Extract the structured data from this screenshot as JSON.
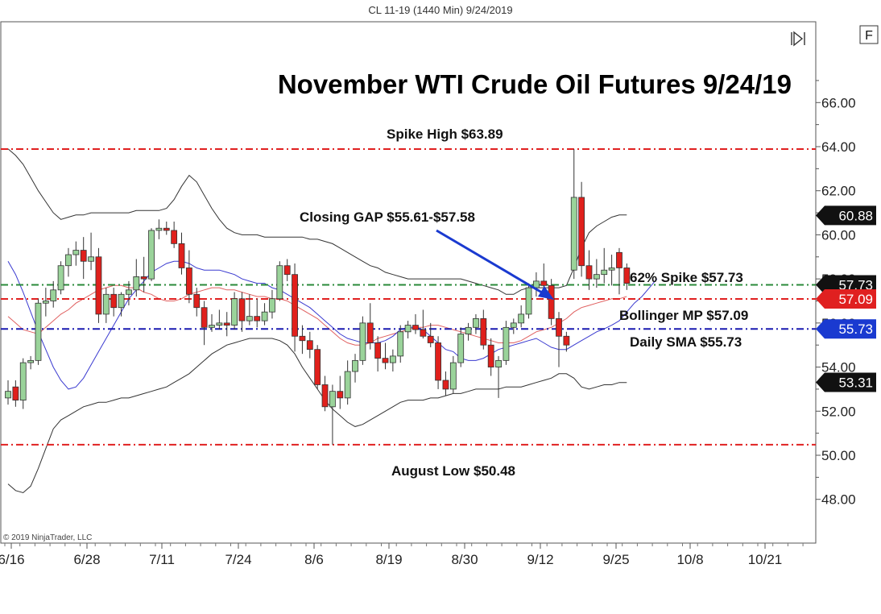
{
  "header": {
    "caption": "CL 11-19 (1440 Min)  9/24/2019"
  },
  "copyright": "© 2019 NinjaTrader, LLC",
  "controls": {
    "f_label": "F"
  },
  "chart_data": {
    "type": "candlestick",
    "title": "November WTI Crude Oil Futures 9/24/19",
    "ylim": [
      46.5,
      68.5
    ],
    "y_ticks": [
      "48.00",
      "50.00",
      "52.00",
      "54.00",
      "56.00",
      "58.00",
      "60.00",
      "62.00",
      "64.00",
      "66.00"
    ],
    "x_ticks": [
      "6/16",
      "6/28",
      "7/11",
      "7/24",
      "8/6",
      "8/19",
      "8/30",
      "9/12",
      "9/25",
      "10/8",
      "10/21"
    ],
    "colors": {
      "up": "#9ad39a",
      "down": "#e0201c",
      "band": "#333333",
      "sma_blue": "#3a3ad0",
      "mp_red": "#e06060"
    },
    "levels": [
      {
        "label": "Spike High $63.89",
        "value": 63.89,
        "color": "#e02020",
        "style": "dashdot"
      },
      {
        "label": "62% Spike $57.73",
        "value": 57.73,
        "color": "#2a8a3a",
        "style": "dashdot"
      },
      {
        "label": "Bollinger MP $57.09",
        "value": 57.09,
        "color": "#e02020",
        "style": "dashdot"
      },
      {
        "label": "Daily SMA $55.73",
        "value": 55.73,
        "color": "#1a1ab0",
        "style": "dashdot"
      },
      {
        "label": "August Low $50.48",
        "value": 50.48,
        "color": "#e02020",
        "style": "dashdot"
      }
    ],
    "gap_annotation": "Closing GAP $55.61-$57.58",
    "price_tags": [
      {
        "value": 60.88,
        "text": "60.88",
        "color": "#111111"
      },
      {
        "value": 57.73,
        "text": "57.73",
        "color": "#111111"
      },
      {
        "value": 57.09,
        "text": "57.09",
        "color": "#e02020"
      },
      {
        "value": 55.73,
        "text": "55.73",
        "color": "#1a3ad0"
      },
      {
        "value": 53.31,
        "text": "53.31",
        "color": "#111111"
      }
    ],
    "candles": [
      [
        52.6,
        53.4,
        52.3,
        52.9
      ],
      [
        53.1,
        53.4,
        52.2,
        52.5
      ],
      [
        52.5,
        54.4,
        52.1,
        54.2
      ],
      [
        54.2,
        54.5,
        53.9,
        54.3
      ],
      [
        54.3,
        57.1,
        54.1,
        56.9
      ],
      [
        56.9,
        57.6,
        56.3,
        57.0
      ],
      [
        57.0,
        57.9,
        56.7,
        57.5
      ],
      [
        57.5,
        58.8,
        57.3,
        58.6
      ],
      [
        58.6,
        59.4,
        58.1,
        59.1
      ],
      [
        59.1,
        59.7,
        58.6,
        59.3
      ],
      [
        59.3,
        59.9,
        58.0,
        58.8
      ],
      [
        58.8,
        60.1,
        58.4,
        59.0
      ],
      [
        59.0,
        59.4,
        56.0,
        56.4
      ],
      [
        56.4,
        57.6,
        56.0,
        57.3
      ],
      [
        57.3,
        57.6,
        56.3,
        56.7
      ],
      [
        56.7,
        57.4,
        56.3,
        57.3
      ],
      [
        57.3,
        57.9,
        56.8,
        57.5
      ],
      [
        57.5,
        58.9,
        57.2,
        58.1
      ],
      [
        58.1,
        59.0,
        57.4,
        58.0
      ],
      [
        58.0,
        60.3,
        57.9,
        60.2
      ],
      [
        60.2,
        60.7,
        59.8,
        60.3
      ],
      [
        60.3,
        60.6,
        60.0,
        60.2
      ],
      [
        60.2,
        60.6,
        59.4,
        59.6
      ],
      [
        59.6,
        60.1,
        58.2,
        58.5
      ],
      [
        58.5,
        59.3,
        56.9,
        57.3
      ],
      [
        57.3,
        57.6,
        56.3,
        56.7
      ],
      [
        56.7,
        57.0,
        55.0,
        55.8
      ],
      [
        55.8,
        56.4,
        55.6,
        55.9
      ],
      [
        55.9,
        56.6,
        55.7,
        56.0
      ],
      [
        56.0,
        56.5,
        55.4,
        55.9
      ],
      [
        55.9,
        57.4,
        55.7,
        57.1
      ],
      [
        57.1,
        57.4,
        55.6,
        56.1
      ],
      [
        56.1,
        57.3,
        55.9,
        56.3
      ],
      [
        56.3,
        57.1,
        55.8,
        56.1
      ],
      [
        56.1,
        56.9,
        55.9,
        56.5
      ],
      [
        56.5,
        57.5,
        56.2,
        57.1
      ],
      [
        57.1,
        58.8,
        57.0,
        58.6
      ],
      [
        58.6,
        58.9,
        57.9,
        58.2
      ],
      [
        58.2,
        58.7,
        54.7,
        55.4
      ],
      [
        55.4,
        55.9,
        54.6,
        55.2
      ],
      [
        55.2,
        55.6,
        54.4,
        54.8
      ],
      [
        54.8,
        55.0,
        53.0,
        53.2
      ],
      [
        53.2,
        53.6,
        52.0,
        52.2
      ],
      [
        52.2,
        53.2,
        50.48,
        52.9
      ],
      [
        52.9,
        53.6,
        52.1,
        52.6
      ],
      [
        52.6,
        54.3,
        52.3,
        53.8
      ],
      [
        53.8,
        54.6,
        53.3,
        54.3
      ],
      [
        54.3,
        56.3,
        54.1,
        56.0
      ],
      [
        56.0,
        56.9,
        54.8,
        55.1
      ],
      [
        55.1,
        55.4,
        53.8,
        54.4
      ],
      [
        54.4,
        55.1,
        53.9,
        54.2
      ],
      [
        54.2,
        54.8,
        53.8,
        54.5
      ],
      [
        54.5,
        55.9,
        54.2,
        55.6
      ],
      [
        55.6,
        56.1,
        55.3,
        55.9
      ],
      [
        55.9,
        56.4,
        55.5,
        55.7
      ],
      [
        55.7,
        56.6,
        55.3,
        55.4
      ],
      [
        55.4,
        56.0,
        54.9,
        55.1
      ],
      [
        55.1,
        55.4,
        53.0,
        53.4
      ],
      [
        53.4,
        53.8,
        52.7,
        53.0
      ],
      [
        53.0,
        54.5,
        52.8,
        54.2
      ],
      [
        54.2,
        55.8,
        54.0,
        55.5
      ],
      [
        55.5,
        56.0,
        55.2,
        55.8
      ],
      [
        55.8,
        56.4,
        55.5,
        56.2
      ],
      [
        56.2,
        56.6,
        54.8,
        55.0
      ],
      [
        55.0,
        55.3,
        53.6,
        54.0
      ],
      [
        54.0,
        54.5,
        52.6,
        54.3
      ],
      [
        54.3,
        56.1,
        54.1,
        55.8
      ],
      [
        55.8,
        56.2,
        55.5,
        56.0
      ],
      [
        56.0,
        56.8,
        55.8,
        56.4
      ],
      [
        56.4,
        57.8,
        56.2,
        57.6
      ],
      [
        57.6,
        58.3,
        57.2,
        57.9
      ],
      [
        57.9,
        58.7,
        57.5,
        57.7
      ],
      [
        57.7,
        58.0,
        55.9,
        56.2
      ],
      [
        56.2,
        56.5,
        54.0,
        55.4
      ],
      [
        55.4,
        55.6,
        54.7,
        55.0
      ],
      [
        58.4,
        63.89,
        58.0,
        61.7
      ],
      [
        61.7,
        62.4,
        58.1,
        58.6
      ],
      [
        58.6,
        59.3,
        57.5,
        58.0
      ],
      [
        58.0,
        58.9,
        57.6,
        58.2
      ],
      [
        58.2,
        59.4,
        57.8,
        58.4
      ],
      [
        58.4,
        59.1,
        57.7,
        58.5
      ],
      [
        59.2,
        59.4,
        57.3,
        58.5
      ],
      [
        58.5,
        58.7,
        57.5,
        57.8
      ]
    ],
    "bb_upper": [
      63.9,
      63.6,
      63.2,
      62.6,
      62.0,
      61.5,
      61.0,
      60.7,
      60.8,
      60.9,
      60.9,
      61.0,
      61.0,
      61.0,
      61.0,
      61.0,
      61.0,
      61.1,
      61.1,
      61.1,
      61.1,
      61.2,
      61.6,
      62.2,
      62.7,
      62.4,
      61.8,
      61.2,
      60.7,
      60.3,
      60.1,
      60.0,
      60.0,
      60.0,
      59.9,
      59.9,
      59.9,
      59.9,
      59.9,
      59.9,
      59.8,
      59.8,
      59.7,
      59.6,
      59.4,
      59.2,
      59.0,
      58.8,
      58.6,
      58.5,
      58.3,
      58.2,
      58.1,
      58.0,
      58.0,
      58.0,
      58.0,
      58.0,
      58.0,
      58.0,
      58.0,
      57.9,
      57.8,
      57.7,
      57.6,
      57.5,
      57.3,
      57.3,
      57.5,
      57.6,
      57.6,
      57.6,
      57.6,
      57.6,
      57.7,
      58.5,
      59.4,
      60.1,
      60.4,
      60.6,
      60.8,
      60.9,
      60.9
    ],
    "bb_lower": [
      48.7,
      48.4,
      48.3,
      48.6,
      49.4,
      50.3,
      51.2,
      51.6,
      51.8,
      52.0,
      52.2,
      52.3,
      52.4,
      52.4,
      52.5,
      52.6,
      52.6,
      52.7,
      52.8,
      52.9,
      53.0,
      53.1,
      53.3,
      53.5,
      53.7,
      54.0,
      54.3,
      54.6,
      54.8,
      55.0,
      55.1,
      55.2,
      55.3,
      55.3,
      55.3,
      55.3,
      55.2,
      55.0,
      54.6,
      54.0,
      53.5,
      53.0,
      52.5,
      52.1,
      51.8,
      51.5,
      51.3,
      51.4,
      51.6,
      51.8,
      52.0,
      52.2,
      52.4,
      52.5,
      52.5,
      52.5,
      52.6,
      52.6,
      52.7,
      52.8,
      52.8,
      52.9,
      53.0,
      53.0,
      53.0,
      53.0,
      53.1,
      53.1,
      53.1,
      53.2,
      53.3,
      53.4,
      53.5,
      53.7,
      53.7,
      53.5,
      53.1,
      53.0,
      53.1,
      53.2,
      53.2,
      53.3,
      53.3
    ],
    "bb_mid": [
      56.3,
      56.0,
      55.7,
      55.6,
      55.5,
      55.8,
      56.1,
      56.4,
      56.6,
      56.9,
      57.1,
      57.3,
      57.5,
      57.6,
      57.7,
      57.7,
      57.6,
      57.6,
      57.4,
      57.3,
      57.1,
      57.0,
      57.0,
      57.1,
      57.3,
      57.4,
      57.5,
      57.6,
      57.6,
      57.5,
      57.5,
      57.4,
      57.3,
      57.2,
      57.2,
      57.1,
      57.1,
      57.0,
      56.8,
      56.6,
      56.4,
      56.2,
      55.9,
      55.6,
      55.3,
      55.1,
      55.0,
      55.0,
      55.1,
      55.3,
      55.4,
      55.5,
      55.6,
      55.7,
      55.8,
      55.8,
      55.9,
      55.9,
      55.8,
      55.7,
      55.6,
      55.5,
      55.4,
      55.3,
      55.2,
      55.1,
      55.1,
      55.1,
      55.2,
      55.4,
      55.6,
      55.7,
      55.8,
      56.0,
      56.2,
      56.5,
      56.7,
      56.8,
      56.9,
      57.0,
      57.1,
      57.1,
      57.2
    ],
    "sma": [
      58.8,
      58.2,
      57.4,
      56.5,
      55.6,
      54.8,
      54.0,
      53.4,
      53.0,
      53.1,
      53.5,
      54.1,
      54.7,
      55.3,
      55.9,
      56.5,
      57.1,
      57.5,
      57.9,
      58.3,
      58.5,
      58.7,
      58.8,
      58.8,
      58.7,
      58.5,
      58.4,
      58.4,
      58.4,
      58.3,
      58.2,
      58.0,
      57.9,
      57.8,
      57.8,
      57.6,
      57.5,
      57.3,
      57.1,
      56.9,
      56.7,
      56.4,
      56.1,
      55.8,
      55.5,
      55.3,
      55.2,
      55.1,
      55.1,
      55.1,
      55.2,
      55.4,
      55.7,
      55.8,
      55.8,
      55.7,
      55.4,
      55.1,
      54.8,
      54.7,
      54.4,
      54.3,
      54.3,
      54.4,
      54.6,
      54.8,
      54.9,
      55.0,
      55.1,
      55.2,
      55.3,
      55.1,
      54.9,
      54.8,
      54.8,
      55.0,
      55.2,
      55.4,
      55.6,
      55.73,
      55.9,
      56.1,
      56.5
    ],
    "sma_extension": [
      56.9,
      57.2,
      57.6,
      58.0
    ]
  }
}
